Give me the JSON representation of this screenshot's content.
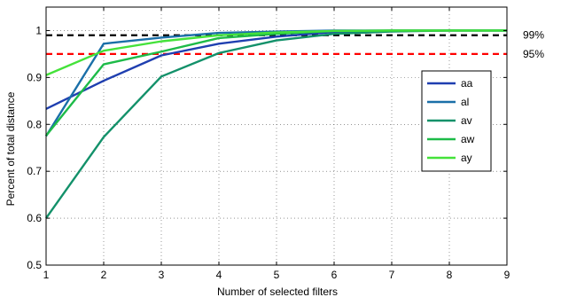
{
  "chart_data": {
    "type": "line",
    "title": "",
    "xlabel": "Number of selected filters",
    "ylabel": "Percent of total distance",
    "xlim": [
      1,
      9
    ],
    "ylim": [
      0.5,
      1.05
    ],
    "x_ticks": [
      1,
      2,
      3,
      4,
      5,
      6,
      7,
      8,
      9
    ],
    "y_ticks": [
      0.5,
      0.6,
      0.7,
      0.8,
      0.9,
      1.0
    ],
    "y_tick_labels": [
      "0.5",
      "0.6",
      "0.7",
      "0.8",
      "0.9",
      "1"
    ],
    "grid": true,
    "grid_style": "dotted",
    "legend_position": "right",
    "x": [
      1,
      2,
      3,
      4,
      5,
      6,
      7,
      8,
      9
    ],
    "series": [
      {
        "name": "aa",
        "color": "#1f3fb0",
        "values": [
          0.833,
          0.893,
          0.947,
          0.972,
          0.987,
          0.997,
          1.0,
          1.0,
          1.0
        ]
      },
      {
        "name": "al",
        "color": "#1a6fa8",
        "values": [
          0.775,
          0.972,
          0.985,
          0.995,
          0.998,
          1.0,
          1.0,
          1.0,
          1.0
        ]
      },
      {
        "name": "av",
        "color": "#13916a",
        "values": [
          0.6,
          0.773,
          0.902,
          0.952,
          0.979,
          0.993,
          0.998,
          1.0,
          1.0
        ]
      },
      {
        "name": "aw",
        "color": "#1dbb48",
        "values": [
          0.776,
          0.928,
          0.955,
          0.984,
          0.993,
          0.999,
          1.0,
          1.0,
          1.0
        ]
      },
      {
        "name": "ay",
        "color": "#44e23a",
        "values": [
          0.905,
          0.957,
          0.977,
          0.99,
          0.996,
          0.999,
          1.0,
          1.0,
          1.0
        ]
      }
    ],
    "reference_lines": [
      {
        "label": "99%",
        "value": 0.99,
        "color": "#000000"
      },
      {
        "label": "95%",
        "value": 0.95,
        "color": "#ff0000"
      }
    ]
  }
}
